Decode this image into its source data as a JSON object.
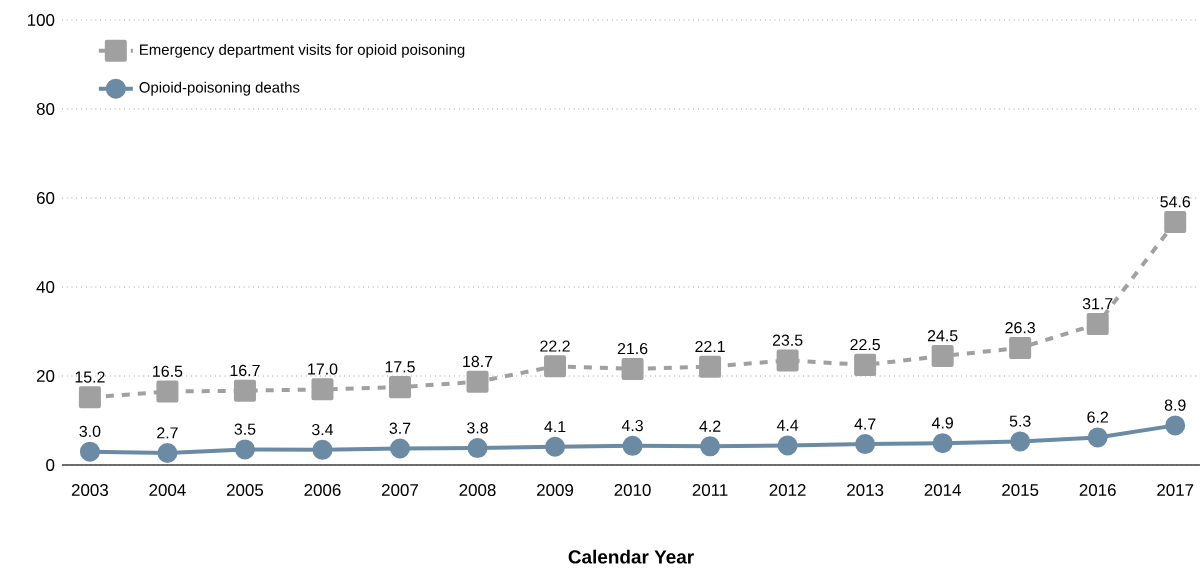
{
  "chart_data": {
    "type": "line",
    "xlabel": "Calendar Year",
    "categories": [
      "2003",
      "2004",
      "2005",
      "2006",
      "2007",
      "2008",
      "2009",
      "2010",
      "2011",
      "2012",
      "2013",
      "2014",
      "2015",
      "2016",
      "2017"
    ],
    "series": [
      {
        "name": "Emergency department visits for opioid poisoning",
        "color": "#a0a0a0",
        "marker": "square",
        "line_style": "dashed",
        "values": [
          15.2,
          16.5,
          16.7,
          17.0,
          17.5,
          18.7,
          22.2,
          21.6,
          22.1,
          23.5,
          22.5,
          24.5,
          26.3,
          31.7,
          54.6
        ],
        "value_labels": [
          "15.2",
          "16.5",
          "16.7",
          "17.0",
          "17.5",
          "18.7",
          "22.2",
          "21.6",
          "22.1",
          "23.5",
          "22.5",
          "24.5",
          "26.3",
          "31.7",
          "54.6"
        ]
      },
      {
        "name": "Opioid-poisoning deaths",
        "color": "#6b8ba4",
        "marker": "circle",
        "line_style": "solid",
        "values": [
          3.0,
          2.7,
          3.5,
          3.4,
          3.7,
          3.8,
          4.1,
          4.3,
          4.2,
          4.4,
          4.7,
          4.9,
          5.3,
          6.2,
          8.9
        ],
        "value_labels": [
          "3.0",
          "2.7",
          "3.5",
          "3.4",
          "3.7",
          "3.8",
          "4.1",
          "4.3",
          "4.2",
          "4.4",
          "4.7",
          "4.9",
          "5.3",
          "6.2",
          "8.9"
        ]
      }
    ],
    "ylim": [
      0,
      100
    ],
    "yticks": [
      0,
      20,
      40,
      60,
      80,
      100
    ],
    "grid": "y",
    "legend": "top left"
  }
}
